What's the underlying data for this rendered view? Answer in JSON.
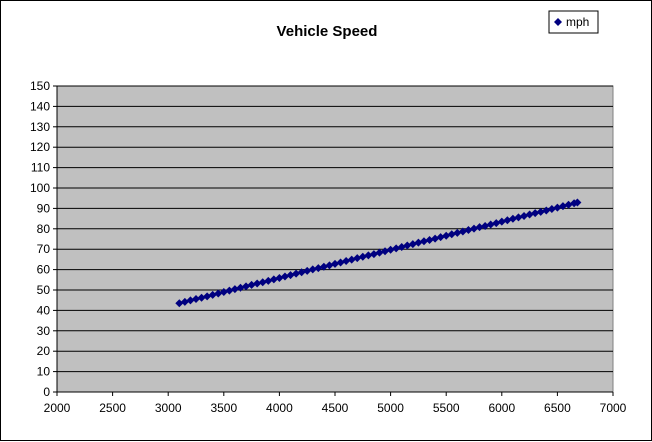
{
  "chart_data": {
    "type": "scatter",
    "title": "Vehicle Speed",
    "xlabel": "",
    "ylabel": "",
    "xlim": [
      2000,
      7000
    ],
    "ylim": [
      0,
      150
    ],
    "xticks": [
      2000,
      2500,
      3000,
      3500,
      4000,
      4500,
      5000,
      5500,
      6000,
      6500,
      7000
    ],
    "yticks": [
      0,
      10,
      20,
      30,
      40,
      50,
      60,
      70,
      80,
      90,
      100,
      110,
      120,
      130,
      140,
      150
    ],
    "grid": "horizontal",
    "legend": "top-right",
    "plot_background": "#c0c0c0",
    "series": [
      {
        "name": "mph",
        "color": "#000080",
        "marker": "diamond",
        "x": [
          3100,
          3150,
          3200,
          3250,
          3300,
          3350,
          3400,
          3450,
          3500,
          3550,
          3600,
          3650,
          3700,
          3750,
          3800,
          3850,
          3900,
          3950,
          4000,
          4050,
          4100,
          4150,
          4200,
          4250,
          4300,
          4350,
          4400,
          4450,
          4500,
          4550,
          4600,
          4650,
          4700,
          4750,
          4800,
          4850,
          4900,
          4950,
          5000,
          5050,
          5100,
          5150,
          5200,
          5250,
          5300,
          5350,
          5400,
          5450,
          5500,
          5550,
          5600,
          5650,
          5700,
          5750,
          5800,
          5850,
          5900,
          5950,
          6000,
          6050,
          6100,
          6150,
          6200,
          6250,
          6300,
          6350,
          6400,
          6450,
          6500,
          6550,
          6600,
          6650,
          6680
        ],
        "y": [
          43.5,
          44.2,
          44.9,
          45.6,
          46.2,
          46.9,
          47.6,
          48.3,
          49.0,
          49.7,
          50.4,
          51.1,
          51.8,
          52.5,
          53.2,
          53.8,
          54.5,
          55.2,
          55.9,
          56.6,
          57.3,
          58.0,
          58.7,
          59.4,
          60.1,
          60.7,
          61.4,
          62.1,
          62.8,
          63.5,
          64.2,
          64.9,
          65.6,
          66.3,
          67.0,
          67.6,
          68.3,
          69.0,
          69.7,
          70.4,
          71.1,
          71.8,
          72.5,
          73.2,
          73.9,
          74.5,
          75.2,
          75.9,
          76.6,
          77.3,
          78.0,
          78.7,
          79.4,
          80.1,
          80.8,
          81.4,
          82.1,
          82.8,
          83.5,
          84.2,
          84.9,
          85.6,
          86.3,
          87.0,
          87.7,
          88.3,
          89.0,
          89.7,
          90.4,
          91.1,
          91.8,
          92.5,
          92.9
        ]
      }
    ]
  }
}
